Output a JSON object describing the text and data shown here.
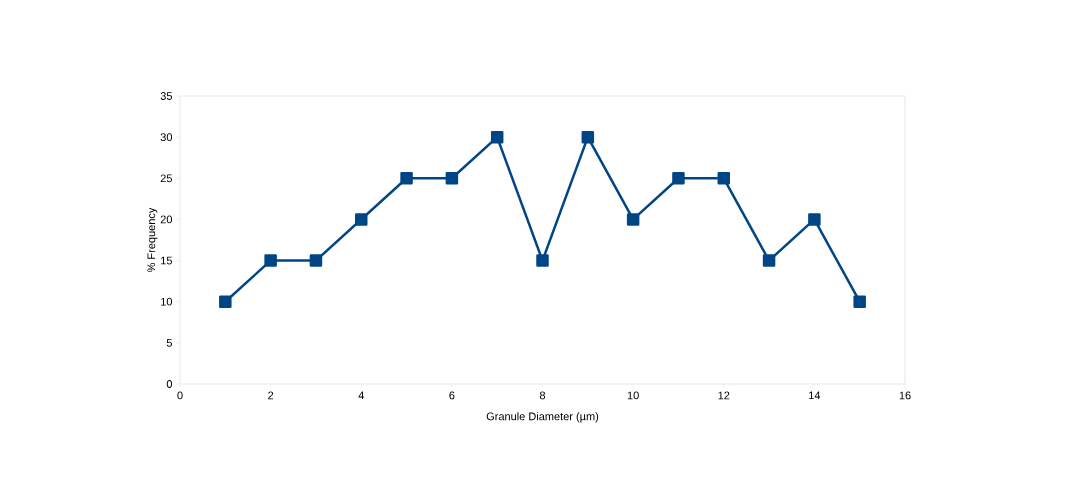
{
  "chart_data": {
    "type": "line",
    "xlabel": "Granule Diameter (µm)",
    "ylabel": "% Frequency",
    "x": [
      1,
      2,
      3,
      4,
      5,
      6,
      7,
      8,
      9,
      10,
      11,
      12,
      13,
      14,
      15
    ],
    "series": [
      {
        "color": "#004586",
        "values": [
          10,
          15,
          15,
          20,
          25,
          25,
          30,
          15,
          30,
          20,
          25,
          25,
          15,
          20,
          10
        ]
      }
    ],
    "xlim": [
      0,
      16
    ],
    "xticks": [
      0,
      2,
      4,
      6,
      8,
      10,
      12,
      14,
      16
    ],
    "ylim": [
      0,
      35
    ],
    "yticks": [
      0,
      5,
      10,
      15,
      20,
      25,
      30,
      35
    ],
    "marker": "square",
    "line_style": "solid"
  }
}
